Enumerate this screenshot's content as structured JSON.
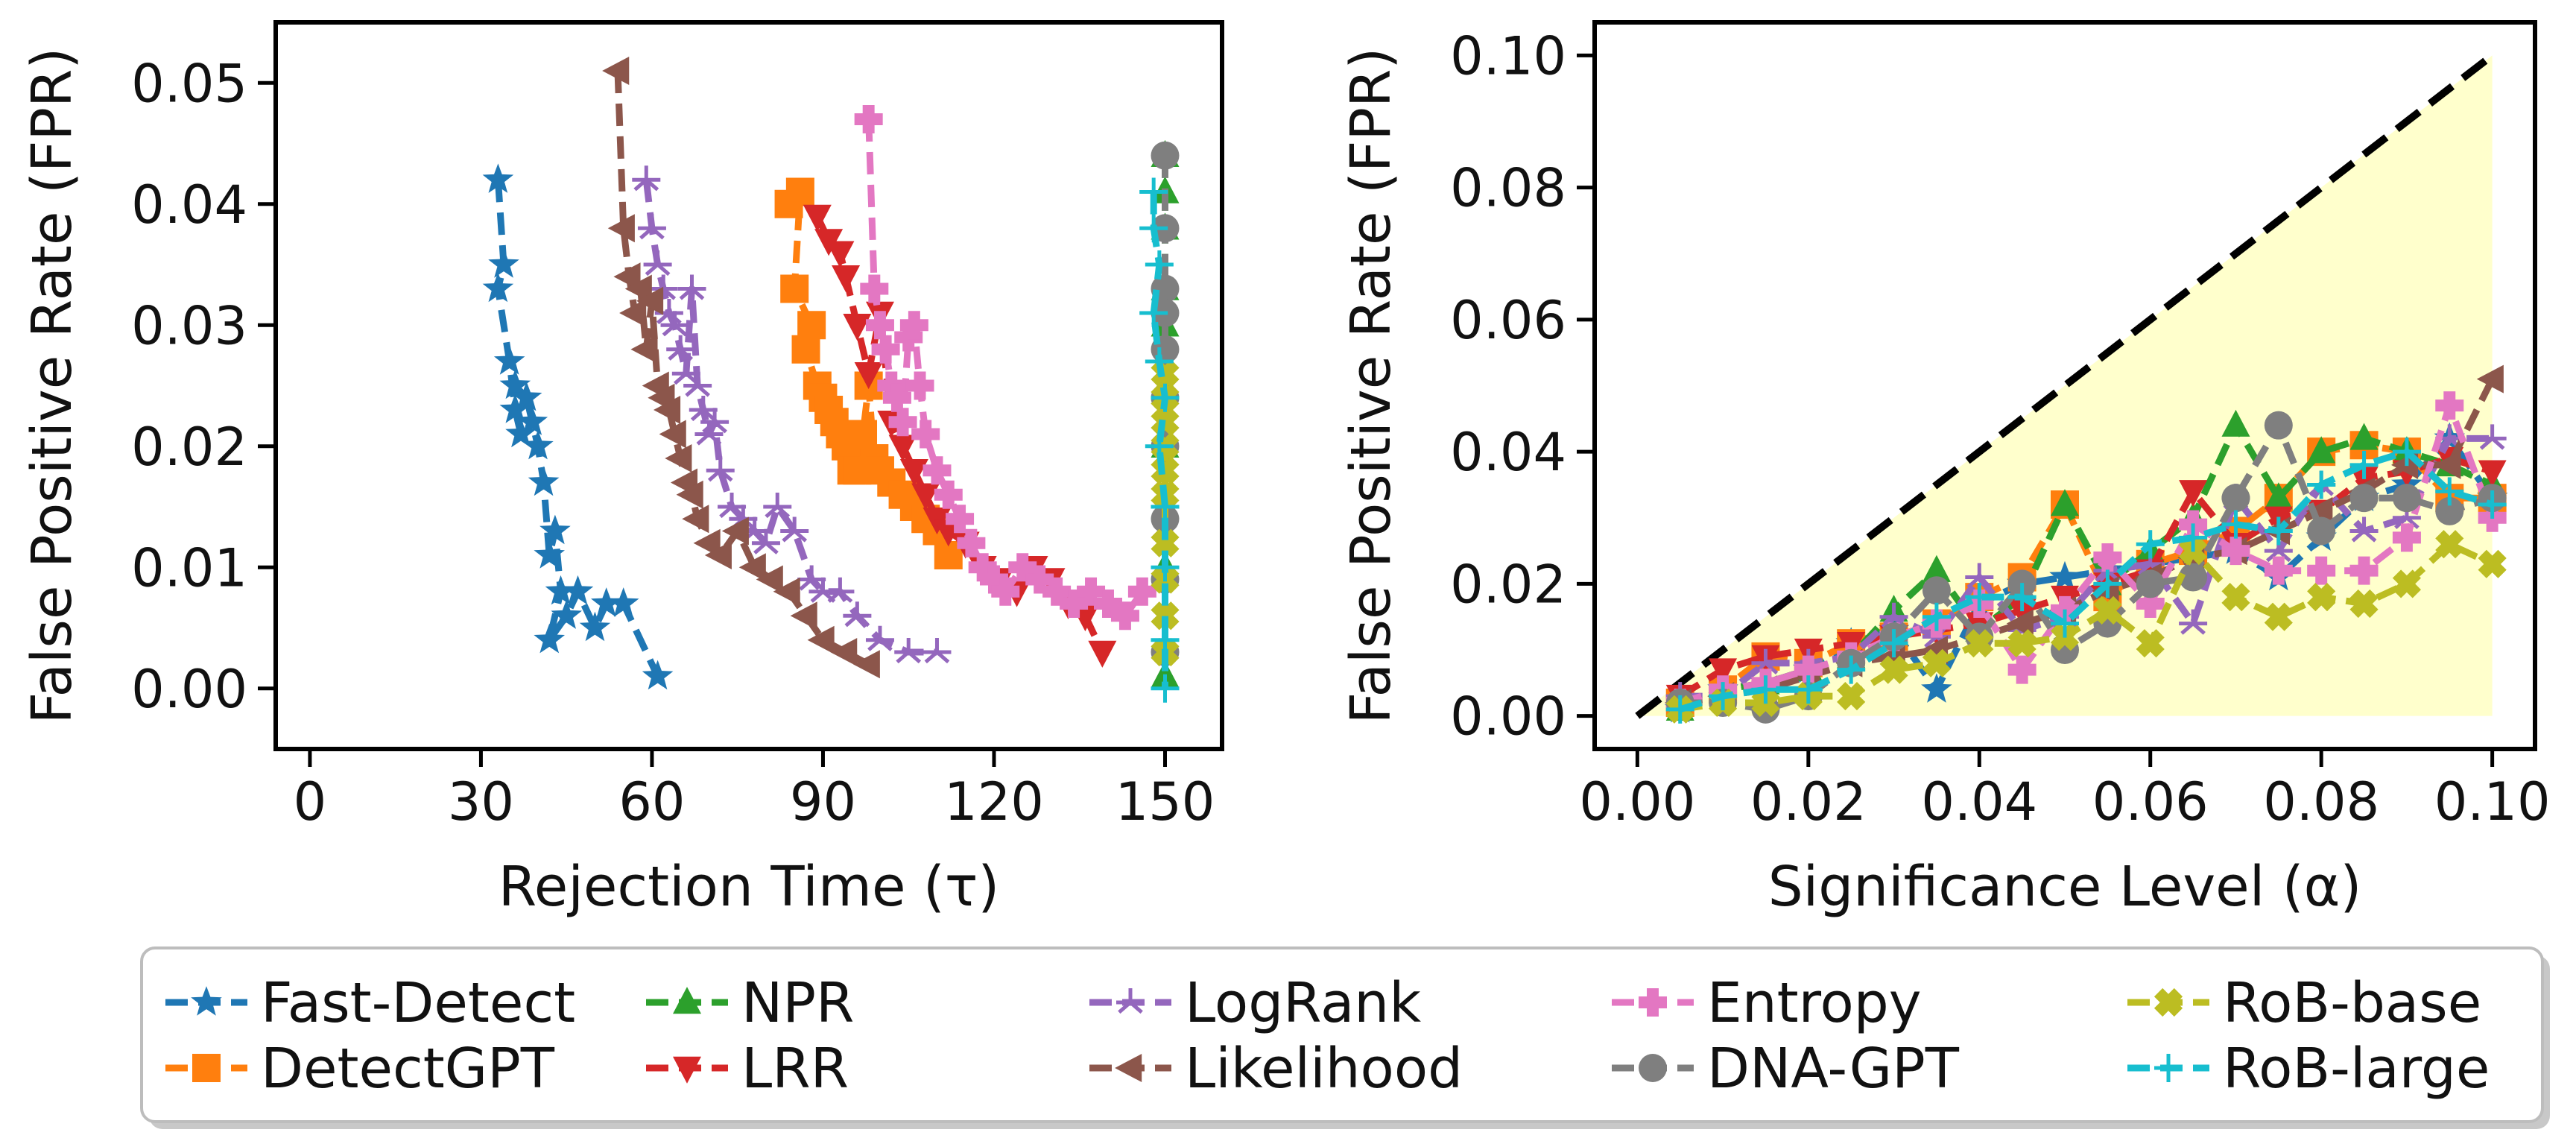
{
  "colors": {
    "Fast-Detect": "#1f77b4",
    "DetectGPT": "#ff7f0e",
    "NPR": "#2ca02c",
    "LRR": "#d62728",
    "LogRank": "#9467bd",
    "Likelihood": "#8c564b",
    "Entropy": "#e377c2",
    "DNA-GPT": "#7f7f7f",
    "RoB-base": "#bcbd22",
    "RoB-large": "#17becf"
  },
  "legend": {
    "placement": "bottom, 5 columns",
    "entries": [
      {
        "name": "Fast-Detect",
        "marker": "star"
      },
      {
        "name": "DetectGPT",
        "marker": "square"
      },
      {
        "name": "NPR",
        "marker": "triangle-up"
      },
      {
        "name": "LRR",
        "marker": "triangle-down"
      },
      {
        "name": "LogRank",
        "marker": "tri-line"
      },
      {
        "name": "Likelihood",
        "marker": "triangle-left"
      },
      {
        "name": "Entropy",
        "marker": "plus-filled"
      },
      {
        "name": "DNA-GPT",
        "marker": "circle"
      },
      {
        "name": "RoB-base",
        "marker": "x-filled"
      },
      {
        "name": "RoB-large",
        "marker": "plus-thin"
      }
    ]
  },
  "chart_data": [
    {
      "type": "line",
      "xlabel": "Rejection Time (τ)",
      "ylabel": "False Positive Rate (FPR)",
      "xlim": [
        -6,
        160
      ],
      "ylim": [
        -0.005,
        0.055
      ],
      "xticks": [
        "0",
        "30",
        "60",
        "90",
        "120",
        "150"
      ],
      "xtick_values": [
        0,
        30,
        60,
        90,
        120,
        150
      ],
      "yticks": [
        "0.00",
        "0.01",
        "0.02",
        "0.03",
        "0.04",
        "0.05"
      ],
      "ytick_values": [
        0,
        0.01,
        0.02,
        0.03,
        0.04,
        0.05
      ],
      "grid": false,
      "series": [
        {
          "name": "Fast-Detect",
          "x": [
            33,
            34,
            33,
            35,
            36,
            37,
            36,
            38,
            39,
            40,
            41,
            42,
            43,
            44,
            42,
            45,
            47,
            50,
            52,
            55,
            61
          ],
          "y": [
            0.042,
            0.035,
            0.033,
            0.027,
            0.023,
            0.021,
            0.025,
            0.024,
            0.022,
            0.02,
            0.017,
            0.011,
            0.013,
            0.008,
            0.004,
            0.006,
            0.008,
            0.005,
            0.007,
            0.007,
            0.001
          ]
        },
        {
          "name": "DetectGPT",
          "x": [
            84,
            86,
            85,
            88,
            87,
            89,
            90,
            91,
            92,
            93,
            94,
            95,
            96,
            97,
            98,
            99,
            100,
            102,
            104,
            106,
            108,
            110,
            112
          ],
          "y": [
            0.04,
            0.041,
            0.033,
            0.03,
            0.028,
            0.025,
            0.024,
            0.023,
            0.022,
            0.021,
            0.02,
            0.018,
            0.018,
            0.021,
            0.025,
            0.019,
            0.018,
            0.017,
            0.016,
            0.015,
            0.014,
            0.013,
            0.011
          ]
        },
        {
          "name": "NPR",
          "x": [
            150,
            150,
            150,
            150,
            150,
            150,
            150,
            150,
            150,
            150
          ],
          "y": [
            0.044,
            0.041,
            0.038,
            0.033,
            0.03,
            0.025,
            0.02,
            0.015,
            0.01,
            0.001
          ]
        },
        {
          "name": "LRR",
          "x": [
            89,
            91,
            93,
            94,
            96,
            98,
            100,
            102,
            104,
            106,
            108,
            110,
            112,
            115,
            118,
            121,
            124,
            127,
            130,
            133,
            136,
            139
          ],
          "y": [
            0.039,
            0.037,
            0.036,
            0.034,
            0.03,
            0.026,
            0.031,
            0.022,
            0.02,
            0.018,
            0.016,
            0.014,
            0.013,
            0.012,
            0.01,
            0.009,
            0.008,
            0.01,
            0.009,
            0.007,
            0.006,
            0.003
          ]
        },
        {
          "name": "LogRank",
          "x": [
            59,
            60,
            61,
            62,
            63,
            64,
            65,
            66,
            67,
            68,
            69,
            70,
            71,
            72,
            74,
            76,
            78,
            80,
            82,
            85,
            88,
            90,
            93,
            96,
            100,
            105,
            110
          ],
          "y": [
            0.042,
            0.038,
            0.035,
            0.033,
            0.031,
            0.03,
            0.028,
            0.026,
            0.033,
            0.025,
            0.023,
            0.021,
            0.022,
            0.018,
            0.015,
            0.014,
            0.013,
            0.012,
            0.015,
            0.013,
            0.009,
            0.008,
            0.008,
            0.006,
            0.004,
            0.003,
            0.003
          ]
        },
        {
          "name": "Likelihood",
          "x": [
            54,
            55,
            56,
            57,
            58,
            59,
            60,
            61,
            62,
            63,
            64,
            65,
            66,
            67,
            68,
            70,
            72,
            75,
            78,
            81,
            84,
            87,
            90,
            94,
            98
          ],
          "y": [
            0.051,
            0.038,
            0.034,
            0.031,
            0.033,
            0.028,
            0.032,
            0.025,
            0.024,
            0.023,
            0.021,
            0.019,
            0.017,
            0.016,
            0.014,
            0.012,
            0.011,
            0.013,
            0.01,
            0.009,
            0.008,
            0.006,
            0.004,
            0.003,
            0.002
          ]
        },
        {
          "name": "Entropy",
          "x": [
            98,
            99,
            100,
            101,
            102,
            103,
            104,
            105,
            106,
            107,
            108,
            110,
            112,
            114,
            116,
            118,
            120,
            122,
            125,
            128,
            131,
            134,
            137,
            140,
            143,
            146
          ],
          "y": [
            0.047,
            0.033,
            0.03,
            0.028,
            0.025,
            0.024,
            0.022,
            0.029,
            0.03,
            0.025,
            0.021,
            0.018,
            0.016,
            0.014,
            0.012,
            0.01,
            0.009,
            0.008,
            0.01,
            0.009,
            0.008,
            0.007,
            0.008,
            0.007,
            0.006,
            0.008
          ]
        },
        {
          "name": "DNA-GPT",
          "x": [
            150,
            150,
            150,
            150,
            150,
            150,
            150,
            150,
            150,
            150
          ],
          "y": [
            0.044,
            0.038,
            0.033,
            0.031,
            0.028,
            0.024,
            0.02,
            0.014,
            0.009,
            0.003
          ]
        },
        {
          "name": "RoB-base",
          "x": [
            150,
            150,
            150,
            150,
            150,
            150,
            150,
            150,
            150,
            150
          ],
          "y": [
            0.026,
            0.024,
            0.022,
            0.02,
            0.018,
            0.016,
            0.012,
            0.009,
            0.006,
            0.003
          ]
        },
        {
          "name": "RoB-large",
          "x": [
            148,
            148,
            149,
            148,
            149,
            150,
            149,
            150,
            150,
            150,
            150
          ],
          "y": [
            0.041,
            0.038,
            0.035,
            0.031,
            0.027,
            0.024,
            0.02,
            0.015,
            0.01,
            0.004,
            0.0
          ]
        }
      ]
    },
    {
      "type": "line",
      "xlabel": "Significance Level (α)",
      "ylabel": "False Positive Rate (FPR)",
      "xlim": [
        -0.005,
        0.105
      ],
      "ylim": [
        -0.005,
        0.105
      ],
      "xticks": [
        "0.00",
        "0.02",
        "0.04",
        "0.06",
        "0.08",
        "0.10"
      ],
      "xtick_values": [
        0,
        0.02,
        0.04,
        0.06,
        0.08,
        0.1
      ],
      "yticks": [
        "0.00",
        "0.02",
        "0.04",
        "0.06",
        "0.08",
        "0.10"
      ],
      "ytick_values": [
        0,
        0.02,
        0.04,
        0.06,
        0.08,
        0.1
      ],
      "grid": false,
      "reference_line": {
        "x": [
          0,
          0.1
        ],
        "y": [
          0,
          0.1
        ],
        "style": "dashed",
        "color": "#000000"
      },
      "shaded_region": {
        "x": [
          0,
          0.1
        ],
        "y_lower": [
          0,
          0
        ],
        "y_upper": [
          0,
          0.1
        ],
        "color": "#ffffcc"
      },
      "x": [
        0.005,
        0.01,
        0.015,
        0.02,
        0.025,
        0.03,
        0.035,
        0.04,
        0.045,
        0.05,
        0.055,
        0.06,
        0.065,
        0.07,
        0.075,
        0.08,
        0.085,
        0.09,
        0.095,
        0.1
      ],
      "series": [
        {
          "name": "Fast-Detect",
          "values": [
            0.001,
            0.004,
            0.005,
            0.007,
            0.011,
            0.013,
            0.004,
            0.017,
            0.02,
            0.021,
            0.022,
            0.023,
            0.024,
            0.025,
            0.021,
            0.027,
            0.033,
            0.035,
            0.042,
            0.033
          ]
        },
        {
          "name": "DetectGPT",
          "values": [
            0.002,
            0.004,
            0.009,
            0.008,
            0.011,
            0.012,
            0.014,
            0.018,
            0.021,
            0.032,
            0.018,
            0.023,
            0.025,
            0.028,
            0.033,
            0.04,
            0.041,
            0.04,
            0.033,
            0.033
          ]
        },
        {
          "name": "NPR",
          "values": [
            0.001,
            0.004,
            0.005,
            0.007,
            0.009,
            0.016,
            0.022,
            0.013,
            0.018,
            0.032,
            0.02,
            0.025,
            0.03,
            0.044,
            0.033,
            0.04,
            0.042,
            0.04,
            0.038,
            0.035
          ]
        },
        {
          "name": "LRR",
          "values": [
            0.003,
            0.007,
            0.009,
            0.01,
            0.011,
            0.012,
            0.013,
            0.014,
            0.016,
            0.018,
            0.02,
            0.022,
            0.034,
            0.026,
            0.03,
            0.031,
            0.036,
            0.037,
            0.039,
            0.037
          ]
        },
        {
          "name": "LogRank",
          "values": [
            0.003,
            0.003,
            0.008,
            0.008,
            0.009,
            0.015,
            0.012,
            0.021,
            0.013,
            0.015,
            0.022,
            0.023,
            0.014,
            0.033,
            0.025,
            0.035,
            0.028,
            0.03,
            0.042,
            0.042
          ]
        },
        {
          "name": "Likelihood",
          "values": [
            0.002,
            0.003,
            0.004,
            0.006,
            0.008,
            0.009,
            0.01,
            0.012,
            0.014,
            0.016,
            0.019,
            0.021,
            0.024,
            0.025,
            0.028,
            0.031,
            0.034,
            0.038,
            0.038,
            0.051
          ]
        },
        {
          "name": "Entropy",
          "values": [
            0.002,
            0.004,
            0.005,
            0.007,
            0.009,
            0.012,
            0.014,
            0.017,
            0.007,
            0.016,
            0.024,
            0.017,
            0.029,
            0.025,
            0.022,
            0.022,
            0.022,
            0.027,
            0.047,
            0.03
          ]
        },
        {
          "name": "DNA-GPT",
          "values": [
            0.002,
            0.002,
            0.001,
            0.003,
            0.008,
            0.012,
            0.019,
            0.012,
            0.02,
            0.01,
            0.014,
            0.02,
            0.021,
            0.033,
            0.044,
            0.028,
            0.033,
            0.033,
            0.031,
            0.033
          ]
        },
        {
          "name": "RoB-base",
          "values": [
            0.001,
            0.002,
            0.002,
            0.003,
            0.003,
            0.007,
            0.008,
            0.011,
            0.011,
            0.012,
            0.016,
            0.011,
            0.025,
            0.018,
            0.015,
            0.018,
            0.017,
            0.02,
            0.026,
            0.023
          ]
        },
        {
          "name": "RoB-large",
          "values": [
            0.001,
            0.003,
            0.004,
            0.004,
            0.007,
            0.011,
            0.015,
            0.018,
            0.018,
            0.014,
            0.02,
            0.026,
            0.027,
            0.029,
            0.028,
            0.035,
            0.038,
            0.04,
            0.034,
            0.032
          ]
        }
      ]
    }
  ]
}
